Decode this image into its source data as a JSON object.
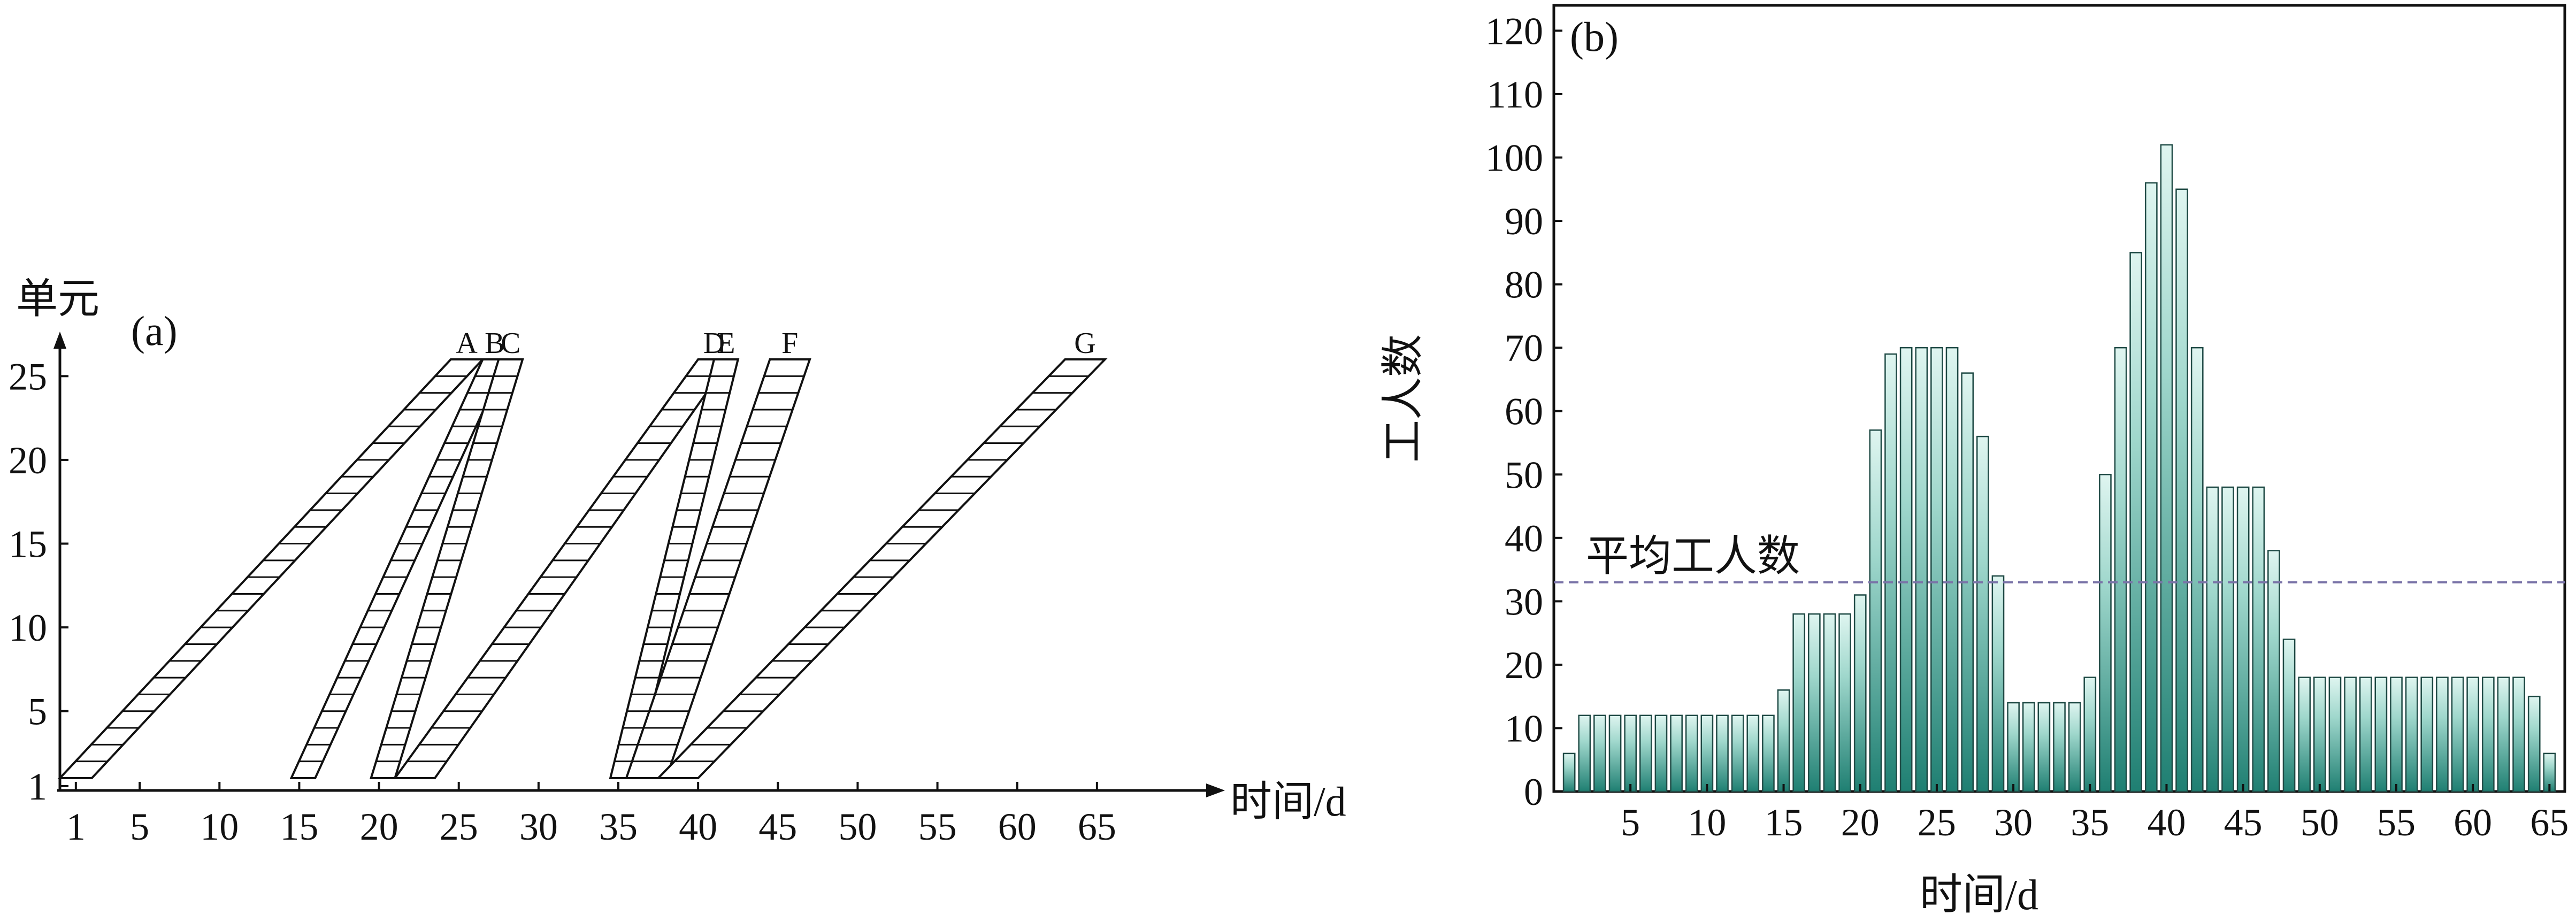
{
  "chart_data": [
    {
      "panel_label": "(a)",
      "type": "line",
      "xlabel": "时间/d",
      "ylabel": "单元",
      "xlim": [
        0,
        70
      ],
      "ylim": [
        1,
        26
      ],
      "x_ticks": [
        1,
        5,
        10,
        15,
        20,
        25,
        30,
        35,
        40,
        45,
        50,
        55,
        60,
        65
      ],
      "y_ticks": [
        1,
        5,
        10,
        15,
        20,
        25
      ],
      "series": [
        {
          "name": "A",
          "start_left": 0,
          "start_right": 2,
          "end_left": 24.5,
          "end_right": 26.5
        },
        {
          "name": "B",
          "start_left": 14.5,
          "start_right": 16,
          "end_left": 26.5,
          "end_right": 28
        },
        {
          "name": "C",
          "start_left": 19.5,
          "start_right": 21,
          "end_left": 27.5,
          "end_right": 29
        },
        {
          "name": "D",
          "start_left": 21,
          "start_right": 23.5,
          "end_left": 40,
          "end_right": 42
        },
        {
          "name": "E",
          "start_left": 34.5,
          "start_right": 36,
          "end_left": 41,
          "end_right": 42.5
        },
        {
          "name": "F",
          "start_left": 35.5,
          "start_right": 38,
          "end_left": 44.5,
          "end_right": 47
        },
        {
          "name": "G",
          "start_left": 37.5,
          "start_right": 40,
          "end_left": 63,
          "end_right": 65.5
        }
      ]
    },
    {
      "panel_label": "(b)",
      "type": "bar",
      "xlabel": "时间/d",
      "ylabel": "工人数",
      "xlim": [
        0,
        66
      ],
      "ylim": [
        0,
        124
      ],
      "x_ticks": [
        5,
        10,
        15,
        20,
        25,
        30,
        35,
        40,
        45,
        50,
        55,
        60,
        65
      ],
      "y_ticks": [
        0,
        10,
        20,
        30,
        40,
        50,
        60,
        70,
        80,
        90,
        100,
        110,
        120
      ],
      "categories": [
        1,
        2,
        3,
        4,
        5,
        6,
        7,
        8,
        9,
        10,
        11,
        12,
        13,
        14,
        15,
        16,
        17,
        18,
        19,
        20,
        21,
        22,
        23,
        24,
        25,
        26,
        27,
        28,
        29,
        30,
        31,
        32,
        33,
        34,
        35,
        36,
        37,
        38,
        39,
        40,
        41,
        42,
        43,
        44,
        45,
        46,
        47,
        48,
        49,
        50,
        51,
        52,
        53,
        54,
        55,
        56,
        57,
        58,
        59,
        60,
        61,
        62,
        63,
        64,
        65
      ],
      "values": [
        6,
        12,
        12,
        12,
        12,
        12,
        12,
        12,
        12,
        12,
        12,
        12,
        12,
        12,
        16,
        28,
        28,
        28,
        28,
        31,
        57,
        69,
        70,
        70,
        70,
        70,
        66,
        56,
        34,
        14,
        14,
        14,
        14,
        14,
        18,
        50,
        70,
        85,
        96,
        102,
        95,
        70,
        48,
        48,
        48,
        48,
        38,
        24,
        18,
        18,
        18,
        18,
        18,
        18,
        18,
        18,
        18,
        18,
        18,
        18,
        18,
        18,
        18,
        15,
        6
      ],
      "average_line": {
        "label": "平均工人数",
        "value": 33
      }
    }
  ]
}
